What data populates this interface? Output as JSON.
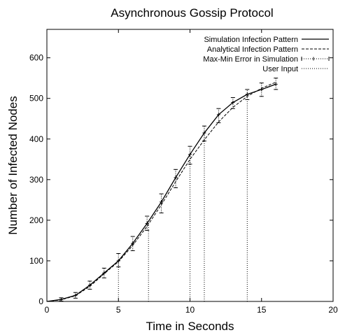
{
  "chart_data": {
    "type": "line",
    "title": "Asynchronous Gossip Protocol",
    "xlabel": "Time in Seconds",
    "ylabel": "Number of Infected Nodes",
    "xlim": [
      0,
      20
    ],
    "ylim": [
      0,
      670
    ],
    "xticks": [
      "0",
      "5",
      "10",
      "15",
      "20"
    ],
    "yticks": [
      "0",
      "100",
      "200",
      "300",
      "400",
      "500",
      "600"
    ],
    "legend_position": "top-right",
    "grid": false,
    "series": [
      {
        "name": "Simulation Infection Pattern",
        "style": "solid",
        "x": [
          0,
          1,
          2,
          3,
          4,
          5,
          6,
          7,
          8,
          9,
          10,
          11,
          12,
          13,
          14,
          15,
          16
        ],
        "y": [
          0,
          5,
          15,
          40,
          70,
          100,
          143,
          192,
          245,
          305,
          362,
          415,
          460,
          490,
          510,
          522,
          535
        ]
      },
      {
        "name": "Analytical Infection Pattern",
        "style": "dashed",
        "x": [
          0,
          1,
          2,
          3,
          4,
          5,
          6,
          7,
          8,
          9,
          10,
          11,
          12,
          13,
          14,
          15,
          16
        ],
        "y": [
          0,
          4,
          14,
          37,
          68,
          98,
          138,
          185,
          238,
          295,
          350,
          398,
          442,
          478,
          505,
          525,
          540
        ]
      },
      {
        "name": "Max-Min Error in Simulation",
        "style": "errorbar",
        "x": [
          1,
          2,
          3,
          4,
          5,
          6,
          7,
          8,
          9,
          10,
          11,
          12,
          13,
          14,
          15,
          16
        ],
        "y": [
          5,
          15,
          40,
          70,
          100,
          143,
          192,
          245,
          305,
          362,
          415,
          460,
          490,
          510,
          522,
          535
        ],
        "min": [
          1,
          8,
          30,
          58,
          85,
          125,
          175,
          218,
          280,
          338,
          395,
          440,
          475,
          497,
          505,
          522
        ],
        "max": [
          9,
          22,
          50,
          82,
          118,
          160,
          210,
          265,
          325,
          382,
          432,
          475,
          502,
          522,
          538,
          550
        ]
      },
      {
        "name": "User Input",
        "style": "dotted-vertical",
        "x": [
          5,
          7.1,
          10,
          11,
          14
        ],
        "y": [
          100,
          190,
          362,
          415,
          510
        ]
      }
    ]
  }
}
